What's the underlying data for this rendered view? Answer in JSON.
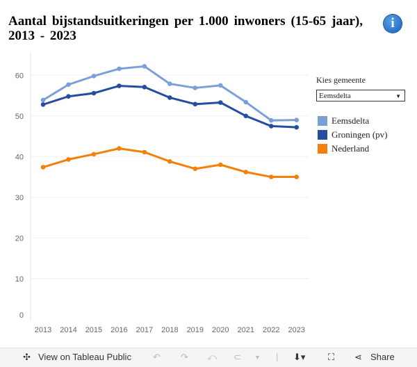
{
  "title": "Aantal bijstandsuitkeringen per 1.000 inwoners (15-65 jaar), 2013 - 2023",
  "info_icon": "info-icon",
  "filter": {
    "label": "Kies gemeente",
    "value": "Eemsdelta"
  },
  "legend": [
    {
      "name": "Eemsdelta",
      "color": "#7b9fd9"
    },
    {
      "name": "Groningen (pv)",
      "color": "#254f9e"
    },
    {
      "name": "Nederland",
      "color": "#f28009"
    }
  ],
  "chart_data": {
    "type": "line",
    "title": "Aantal bijstandsuitkeringen per 1.000 inwoners (15-65 jaar), 2013 - 2023",
    "x": [
      2013,
      2014,
      2015,
      2016,
      2017,
      2018,
      2019,
      2020,
      2021,
      2022,
      2023
    ],
    "ylim": [
      0,
      65
    ],
    "yticks": [
      0,
      10,
      20,
      30,
      40,
      50,
      60
    ],
    "grid": true,
    "legend_position": "right",
    "series": [
      {
        "name": "Eemsdelta",
        "color": "#7b9fd9",
        "values": [
          53.9,
          57.7,
          59.8,
          61.6,
          62.2,
          57.9,
          56.9,
          57.5,
          53.4,
          48.9,
          49.0
        ]
      },
      {
        "name": "Groningen (pv)",
        "color": "#254f9e",
        "values": [
          52.8,
          54.8,
          55.6,
          57.4,
          57.1,
          54.5,
          52.9,
          53.3,
          50.0,
          47.5,
          47.2
        ]
      },
      {
        "name": "Nederland",
        "color": "#f28009",
        "values": [
          37.4,
          39.3,
          40.6,
          42.0,
          41.1,
          38.8,
          37.0,
          38.0,
          36.2,
          35.0,
          35.0
        ]
      }
    ]
  },
  "toolbar": {
    "view": "View on Tableau Public",
    "share": "Share"
  }
}
